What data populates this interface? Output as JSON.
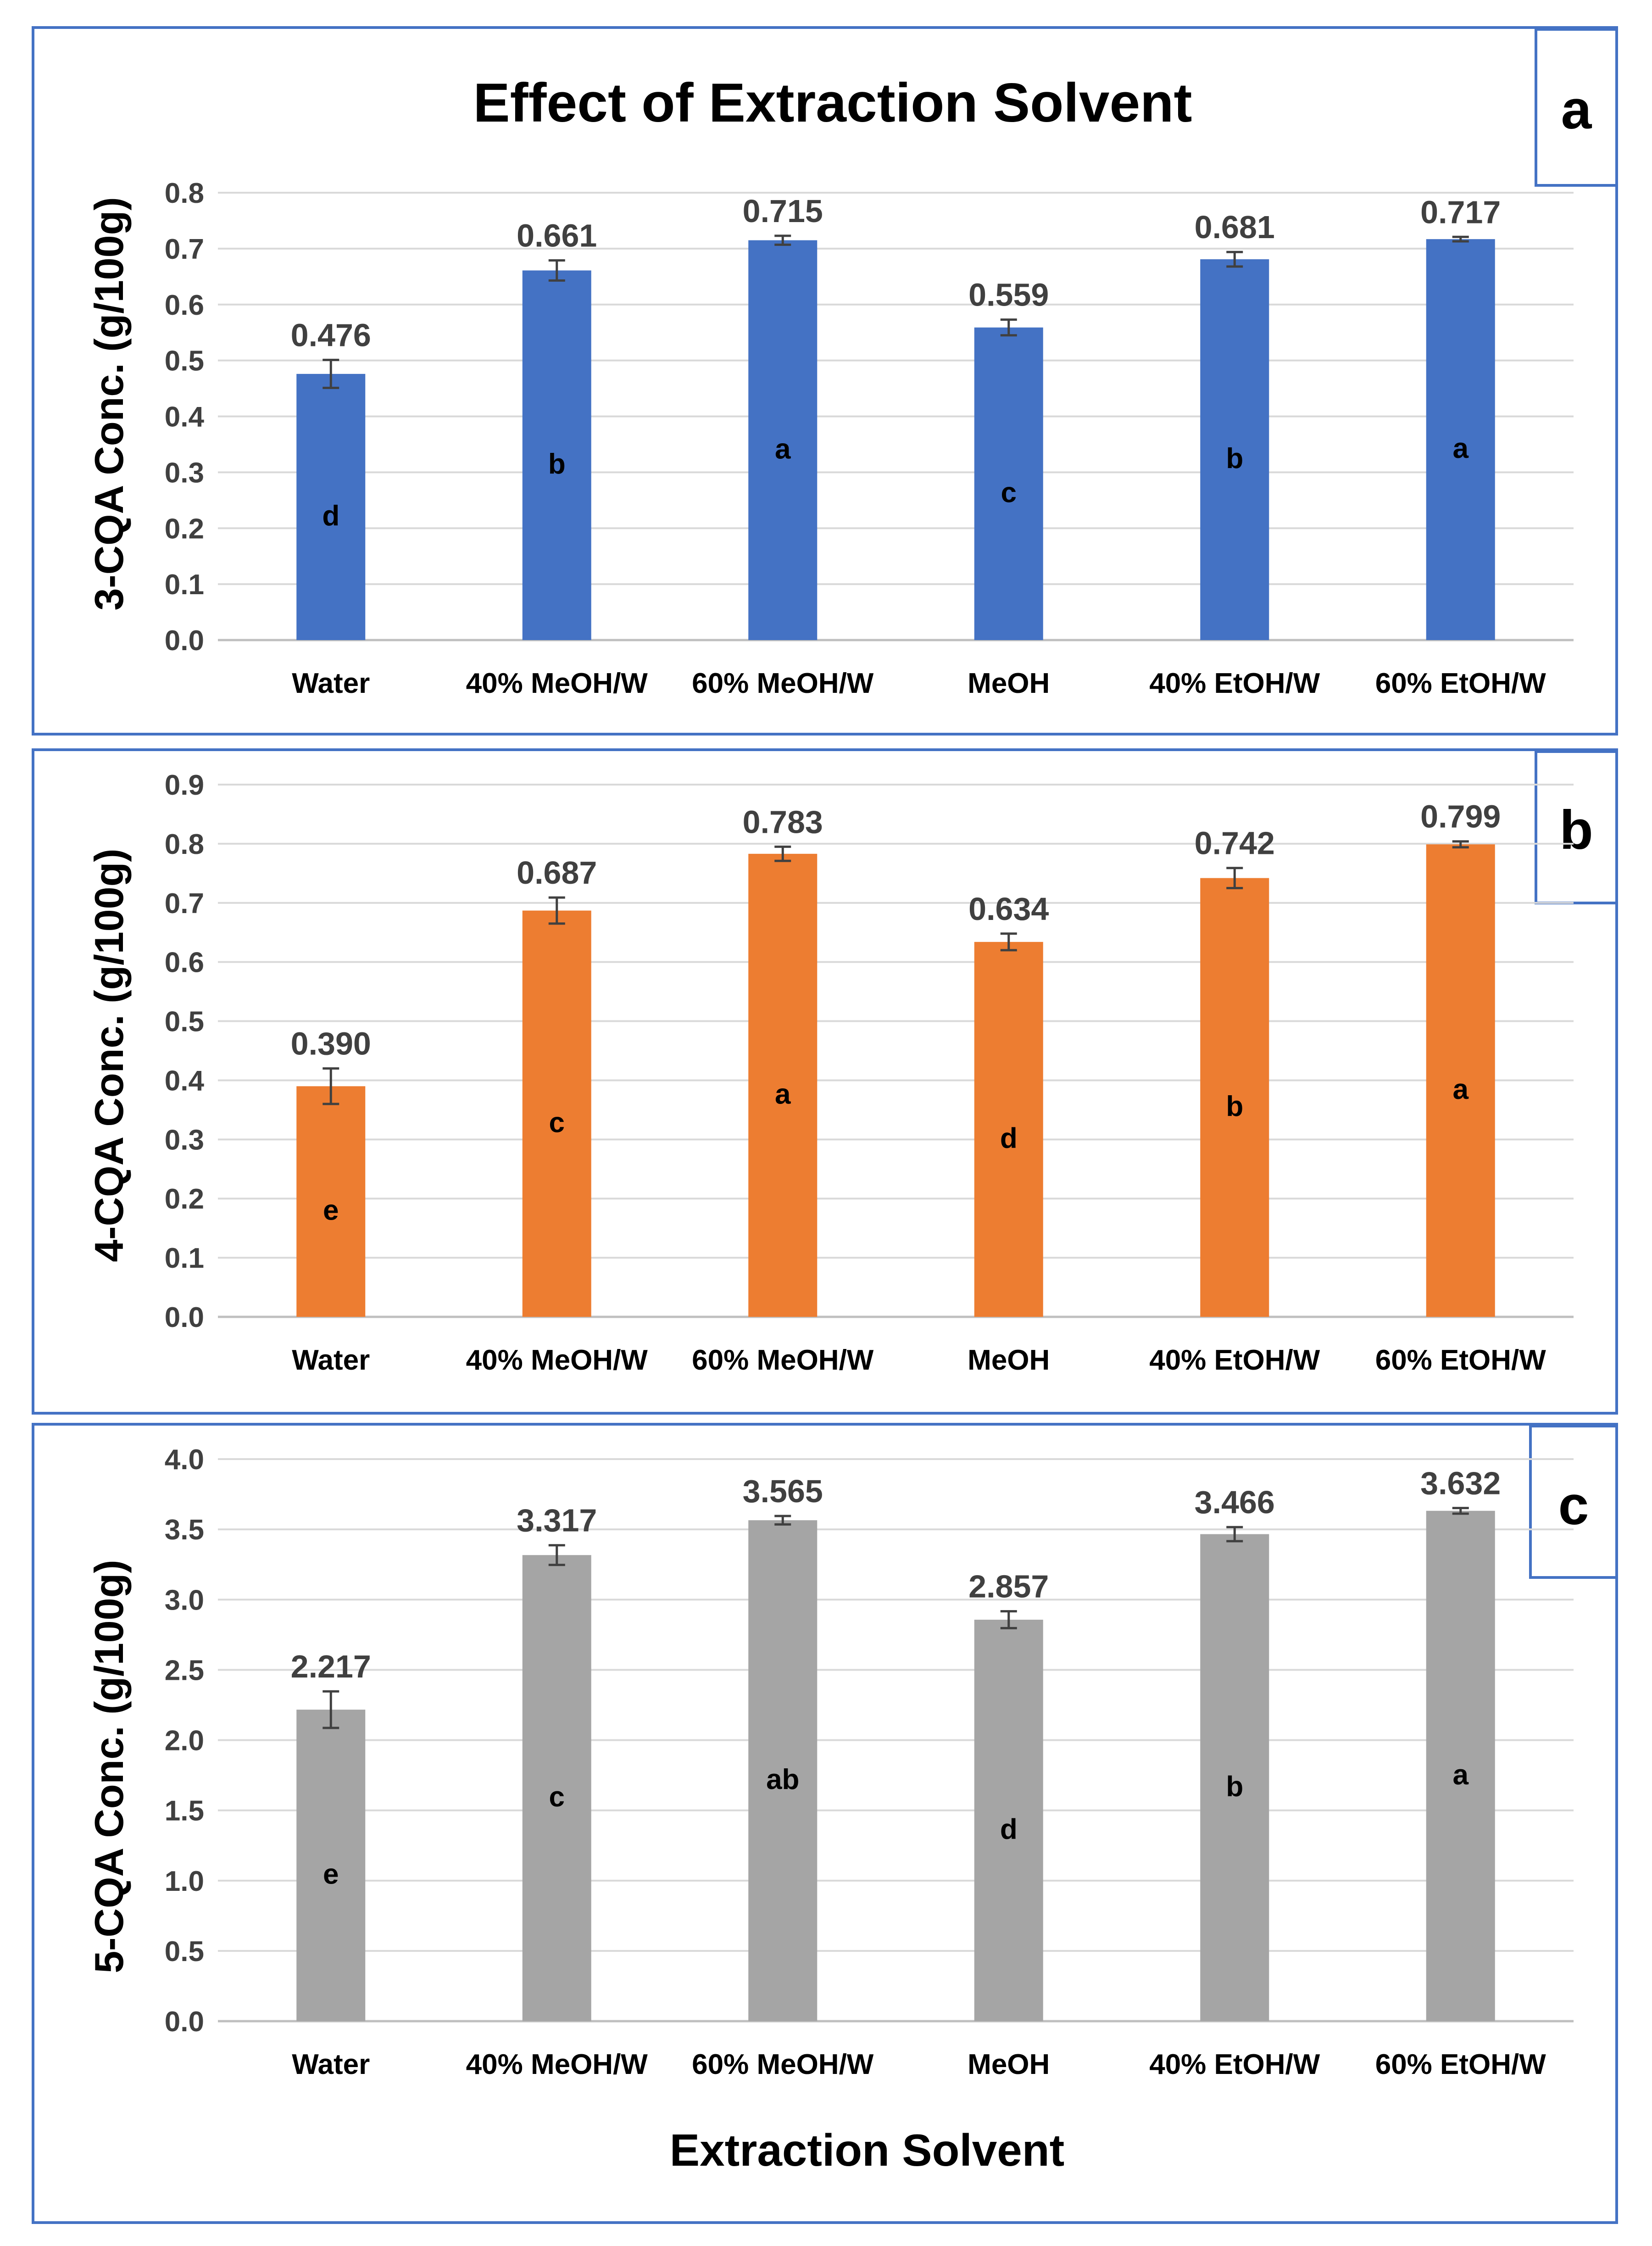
{
  "figure_title": "Effect of Extraction Solvent",
  "x_axis_title": "Extraction Solvent",
  "chart_data": [
    {
      "type": "bar",
      "panel_label": "a",
      "ylabel": "3-CQA Conc. (g/100g)",
      "ylim": [
        0,
        0.8
      ],
      "ytick_step": 0.1,
      "ytick_decimals": 1,
      "color": "#4472C4",
      "categories": [
        "Water",
        "40% MeOH/W",
        "60% MeOH/W",
        "MeOH",
        "40% EtOH/W",
        "60% EtOH/W"
      ],
      "values": [
        0.476,
        0.661,
        0.715,
        0.559,
        0.681,
        0.717
      ],
      "value_labels": [
        "0.476",
        "0.661",
        "0.715",
        "0.559",
        "0.681",
        "0.717"
      ],
      "errors": [
        0.025,
        0.018,
        0.008,
        0.014,
        0.013,
        0.004
      ],
      "significance": [
        "d",
        "b",
        "a",
        "c",
        "b",
        "a"
      ],
      "grid": true
    },
    {
      "type": "bar",
      "panel_label": "b",
      "ylabel": "4-CQA Conc. (g/100g)",
      "ylim": [
        0,
        0.9
      ],
      "ytick_step": 0.1,
      "ytick_decimals": 1,
      "color": "#ED7D31",
      "categories": [
        "Water",
        "40% MeOH/W",
        "60% MeOH/W",
        "MeOH",
        "40% EtOH/W",
        "60% EtOH/W"
      ],
      "values": [
        0.39,
        0.687,
        0.783,
        0.634,
        0.742,
        0.799
      ],
      "value_labels": [
        "0.390",
        "0.687",
        "0.783",
        "0.634",
        "0.742",
        "0.799"
      ],
      "errors": [
        0.03,
        0.022,
        0.012,
        0.014,
        0.017,
        0.005
      ],
      "significance": [
        "e",
        "c",
        "a",
        "d",
        "b",
        "a"
      ],
      "grid": true
    },
    {
      "type": "bar",
      "panel_label": "c",
      "ylabel": "5-CQA Conc. (g/100g)",
      "ylim": [
        0,
        4.0
      ],
      "ytick_step": 0.5,
      "ytick_decimals": 1,
      "color": "#A5A5A5",
      "categories": [
        "Water",
        "40% MeOH/W",
        "60% MeOH/W",
        "MeOH",
        "40% EtOH/W",
        "60% EtOH/W"
      ],
      "values": [
        2.217,
        3.317,
        3.565,
        2.857,
        3.466,
        3.632
      ],
      "value_labels": [
        "2.217",
        "3.317",
        "3.565",
        "2.857",
        "3.466",
        "3.632"
      ],
      "errors": [
        0.13,
        0.07,
        0.03,
        0.06,
        0.05,
        0.02
      ],
      "significance": [
        "e",
        "c",
        "ab",
        "d",
        "b",
        "a"
      ],
      "grid": true
    }
  ]
}
